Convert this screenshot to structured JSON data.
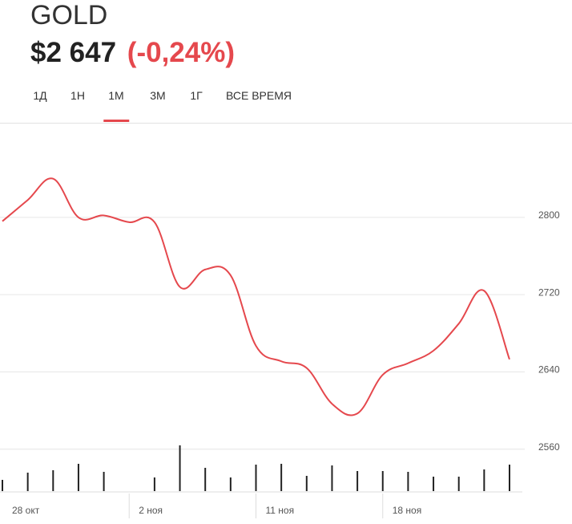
{
  "header": {
    "ticker": "GOLD",
    "price": "$2 647",
    "change": "(-0,24%)"
  },
  "tabs": {
    "items": [
      "1Д",
      "1Н",
      "1М",
      "3М",
      "1Г",
      "ВСЕ ВРЕМЯ"
    ],
    "active": 2
  },
  "chart_data": {
    "type": "line",
    "categories": [
      "28 окт",
      null,
      null,
      null,
      null,
      "2 ноя",
      null,
      null,
      null,
      null,
      "11 ноя",
      null,
      null,
      null,
      null,
      "18 ноя",
      null,
      null,
      null,
      null,
      null
    ],
    "series": [
      {
        "color": "#e5484d",
        "values": [
          2796,
          2818,
          2840,
          2800,
          2802,
          2795,
          2795,
          2728,
          2746,
          2740,
          2667,
          2651,
          2644,
          2607,
          2597,
          2637,
          2649,
          2662,
          2690,
          2724,
          2653
        ]
      }
    ],
    "volume": {
      "color": "#222222",
      "values": [
        14,
        23,
        26,
        34,
        24,
        null,
        17,
        57,
        29,
        17,
        33,
        34,
        19,
        32,
        25,
        25,
        24,
        18,
        18,
        27,
        33
      ]
    },
    "ylim": [
      2554,
      2878
    ],
    "yticks": [
      2560,
      2640,
      2720,
      2800
    ],
    "grid": true
  }
}
